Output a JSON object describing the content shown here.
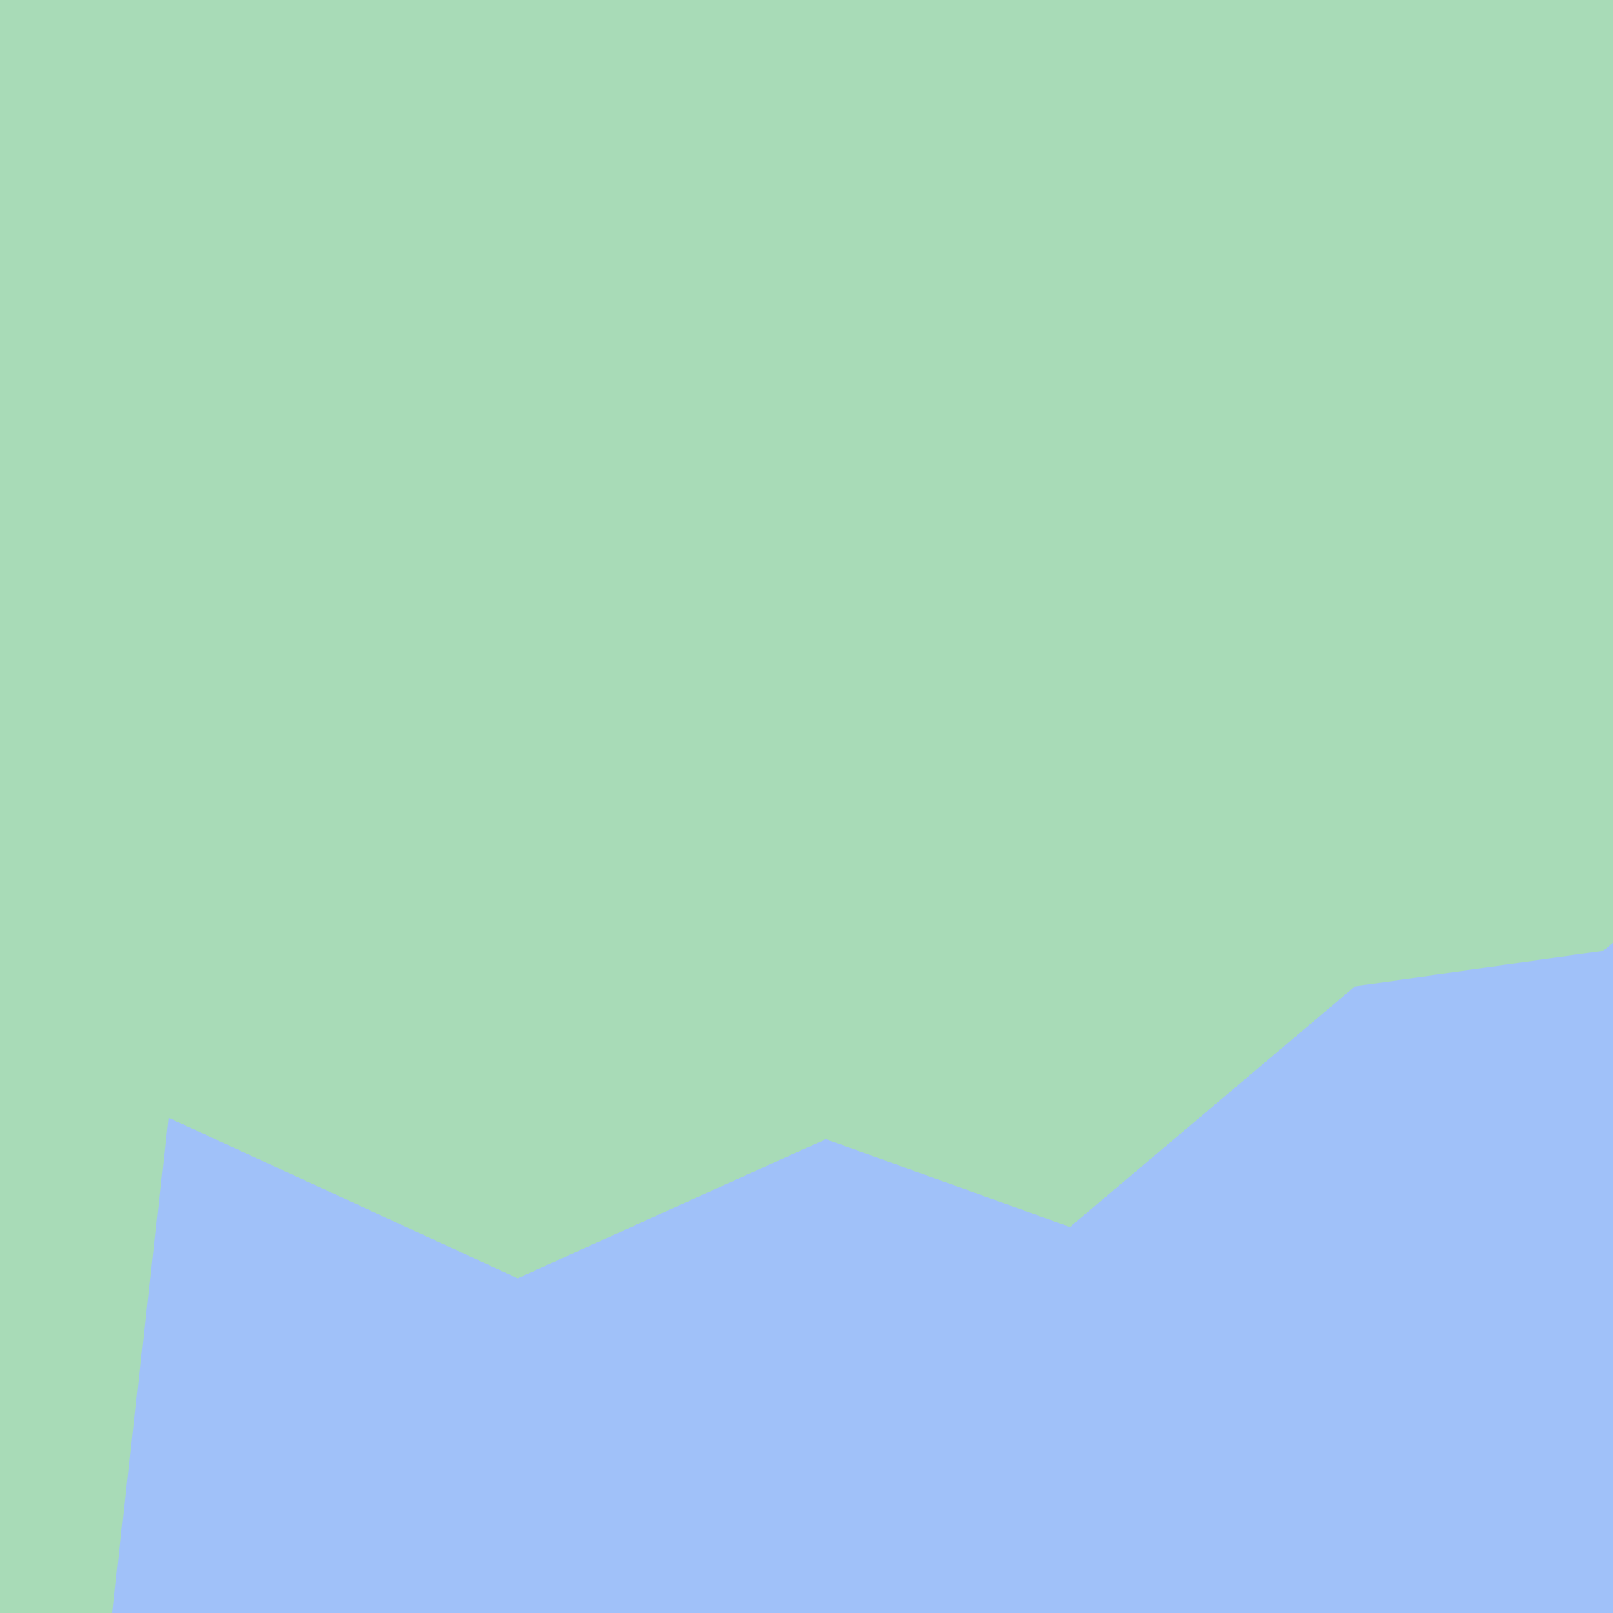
{
  "chart_data": {
    "type": "area",
    "title": "",
    "xlabel": "",
    "ylabel": "",
    "grid": false,
    "legend": "none",
    "colors": {
      "background_area": "#a8dbb7",
      "foreground_area": "#a0c1f9"
    },
    "series": [
      {
        "points": [
          {
            "x": 0.0695,
            "y": 0.0
          },
          {
            "x": 0.1045,
            "y": 0.3071
          },
          {
            "x": 0.321,
            "y": 0.2075
          },
          {
            "x": 0.512,
            "y": 0.2938
          },
          {
            "x": 0.6633,
            "y": 0.2393
          },
          {
            "x": 0.84,
            "y": 0.3885
          },
          {
            "x": 0.9942,
            "y": 0.4107
          },
          {
            "x": 1.0,
            "y": 0.4155
          },
          {
            "x": 1.0,
            "y": 0.0
          }
        ]
      }
    ],
    "xlim": [
      0,
      1
    ],
    "ylim": [
      0,
      1
    ]
  }
}
